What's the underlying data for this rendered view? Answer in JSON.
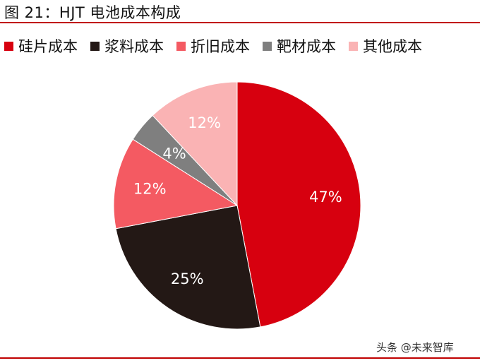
{
  "figure": {
    "title": "图 21：HJT 电池成本构成"
  },
  "chart_data": {
    "type": "pie",
    "legend_position": "top",
    "slices": [
      {
        "label": "硅片成本",
        "value": 47,
        "value_label": "47%",
        "color": "#d7000f"
      },
      {
        "label": "浆料成本",
        "value": 25,
        "value_label": "25%",
        "color": "#231815"
      },
      {
        "label": "折旧成本",
        "value": 12,
        "value_label": "12%",
        "color": "#f45a62"
      },
      {
        "label": "靶材成本",
        "value": 4,
        "value_label": "4%",
        "color": "#7f7f7f"
      },
      {
        "label": "其他成本",
        "value": 12,
        "value_label": "12%",
        "color": "#fab3b4"
      }
    ]
  },
  "watermark": {
    "text": "头条 @未来智库"
  }
}
